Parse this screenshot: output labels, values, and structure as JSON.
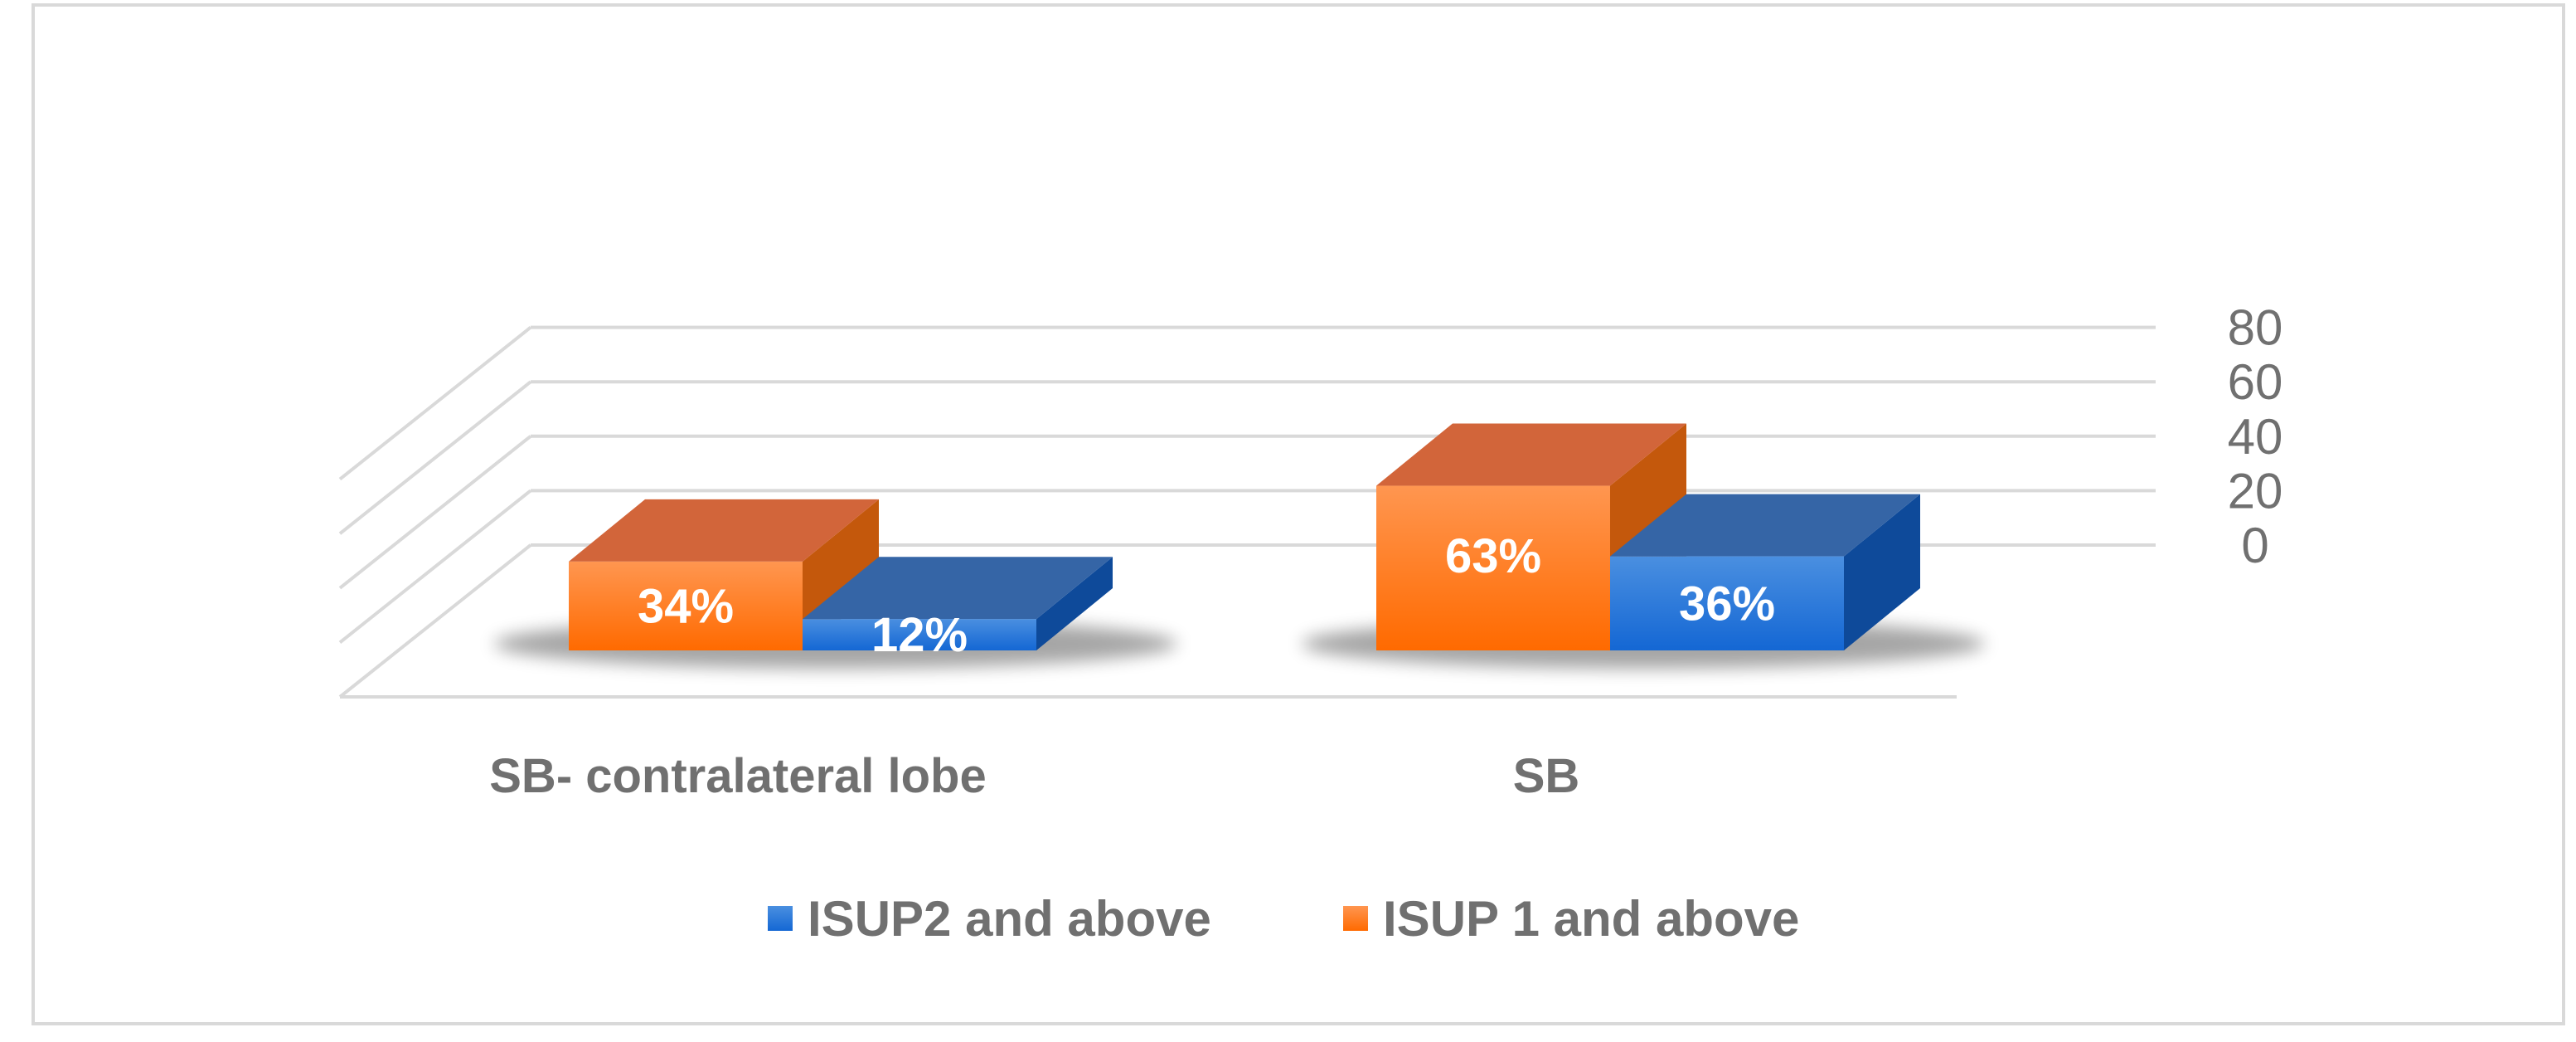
{
  "chart_data": {
    "type": "bar",
    "categories": [
      "SB- contralateral lobe",
      "SB"
    ],
    "series": [
      {
        "name": "ISUP 1 and above",
        "values": [
          34,
          63
        ],
        "labels": [
          "34%",
          "63%"
        ],
        "color": "#f97a1e"
      },
      {
        "name": "ISUP2 and above",
        "values": [
          12,
          36
        ],
        "labels": [
          "12%",
          "36%"
        ],
        "color": "#1f6fd1"
      }
    ],
    "legend_order": [
      "ISUP2 and above",
      "ISUP 1 and above"
    ],
    "yticks": [
      "0",
      "20",
      "40",
      "60",
      "80"
    ],
    "ylim": [
      0,
      80
    ],
    "grid": true,
    "three_d": true,
    "legend_position": "bottom",
    "title": "",
    "xlabel": "",
    "ylabel": ""
  }
}
